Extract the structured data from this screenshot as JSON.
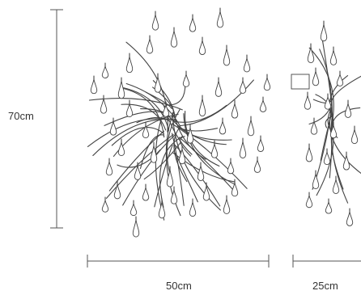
{
  "dimensions": {
    "height": "70cm",
    "width": "50cm",
    "depth": "25cm"
  },
  "colors": {
    "line": "#444444",
    "background": "#ffffff"
  }
}
